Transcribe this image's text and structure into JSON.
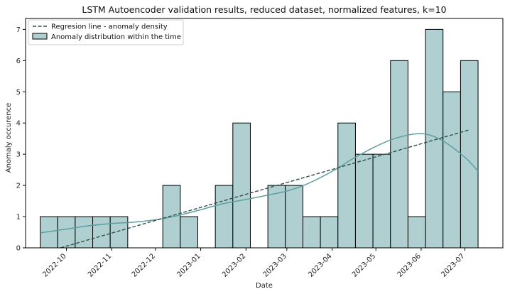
{
  "chart_data": {
    "type": "bar",
    "title": "LSTM Autoencoder validation results, reduced dataset, normalized features, k=10",
    "xlabel": "Date",
    "ylabel": "Anomaly occurence",
    "ylim": [
      0,
      7.35
    ],
    "xlim": [
      "2022-09-03",
      "2023-07-27"
    ],
    "yticks": [
      0,
      1,
      2,
      3,
      4,
      5,
      6,
      7
    ],
    "xticks": [
      "2022-10",
      "2022-11",
      "2022-12",
      "2023-01",
      "2023-02",
      "2023-03",
      "2023-04",
      "2023-05",
      "2023-06",
      "2023-07"
    ],
    "grid": false,
    "legend_position": "top-left",
    "legend": [
      {
        "label": "Regresion line - anomaly density",
        "kind": "dashed-line",
        "color": "#2f4f4f"
      },
      {
        "label": "Anomaly distribution within the time",
        "kind": "patch",
        "color": "#b0cfd0"
      }
    ],
    "bar_color": "#b0cfd0",
    "bar_edge_color": "#000000",
    "kde_color": "#5f9ea0",
    "regression_color": "#2f4f4f",
    "bins": [
      {
        "start": "2022-09-13",
        "end": "2022-09-25",
        "count": 1
      },
      {
        "start": "2022-09-25",
        "end": "2022-10-07",
        "count": 1
      },
      {
        "start": "2022-10-07",
        "end": "2022-10-19",
        "count": 1
      },
      {
        "start": "2022-10-19",
        "end": "2022-10-31",
        "count": 1
      },
      {
        "start": "2022-10-31",
        "end": "2022-11-12",
        "count": 1
      },
      {
        "start": "2022-11-12",
        "end": "2022-11-24",
        "count": 0
      },
      {
        "start": "2022-11-24",
        "end": "2022-12-06",
        "count": 0
      },
      {
        "start": "2022-12-06",
        "end": "2022-12-18",
        "count": 2
      },
      {
        "start": "2022-12-18",
        "end": "2022-12-30",
        "count": 1
      },
      {
        "start": "2022-12-30",
        "end": "2023-01-11",
        "count": 0
      },
      {
        "start": "2023-01-11",
        "end": "2023-01-23",
        "count": 2
      },
      {
        "start": "2023-01-23",
        "end": "2023-02-04",
        "count": 4
      },
      {
        "start": "2023-02-04",
        "end": "2023-02-16",
        "count": 0
      },
      {
        "start": "2023-02-16",
        "end": "2023-02-28",
        "count": 2
      },
      {
        "start": "2023-02-28",
        "end": "2023-03-12",
        "count": 2
      },
      {
        "start": "2023-03-12",
        "end": "2023-03-24",
        "count": 1
      },
      {
        "start": "2023-03-24",
        "end": "2023-04-05",
        "count": 1
      },
      {
        "start": "2023-04-05",
        "end": "2023-04-17",
        "count": 4
      },
      {
        "start": "2023-04-17",
        "end": "2023-04-29",
        "count": 3
      },
      {
        "start": "2023-04-29",
        "end": "2023-05-11",
        "count": 3
      },
      {
        "start": "2023-05-11",
        "end": "2023-05-23",
        "count": 6
      },
      {
        "start": "2023-05-23",
        "end": "2023-06-04",
        "count": 1
      },
      {
        "start": "2023-06-04",
        "end": "2023-06-16",
        "count": 7
      },
      {
        "start": "2023-06-16",
        "end": "2023-06-28",
        "count": 5
      },
      {
        "start": "2023-06-28",
        "end": "2023-07-10",
        "count": 6
      }
    ],
    "regression_line": [
      {
        "x": "2022-09-27",
        "y": 0.0
      },
      {
        "x": "2023-07-04",
        "y": 3.78
      }
    ],
    "kde_curve": [
      {
        "x": "2022-09-13",
        "y": 0.48
      },
      {
        "x": "2022-10-01",
        "y": 0.6
      },
      {
        "x": "2022-10-15",
        "y": 0.7
      },
      {
        "x": "2022-11-01",
        "y": 0.78
      },
      {
        "x": "2022-11-15",
        "y": 0.82
      },
      {
        "x": "2022-12-01",
        "y": 0.9
      },
      {
        "x": "2022-12-15",
        "y": 1.02
      },
      {
        "x": "2023-01-01",
        "y": 1.22
      },
      {
        "x": "2023-01-15",
        "y": 1.4
      },
      {
        "x": "2023-02-01",
        "y": 1.55
      },
      {
        "x": "2023-02-15",
        "y": 1.68
      },
      {
        "x": "2023-03-01",
        "y": 1.82
      },
      {
        "x": "2023-03-15",
        "y": 2.05
      },
      {
        "x": "2023-04-01",
        "y": 2.45
      },
      {
        "x": "2023-04-15",
        "y": 2.85
      },
      {
        "x": "2023-05-01",
        "y": 3.25
      },
      {
        "x": "2023-05-15",
        "y": 3.52
      },
      {
        "x": "2023-06-01",
        "y": 3.66
      },
      {
        "x": "2023-06-15",
        "y": 3.45
      },
      {
        "x": "2023-07-01",
        "y": 2.9
      },
      {
        "x": "2023-07-10",
        "y": 2.45
      }
    ]
  }
}
